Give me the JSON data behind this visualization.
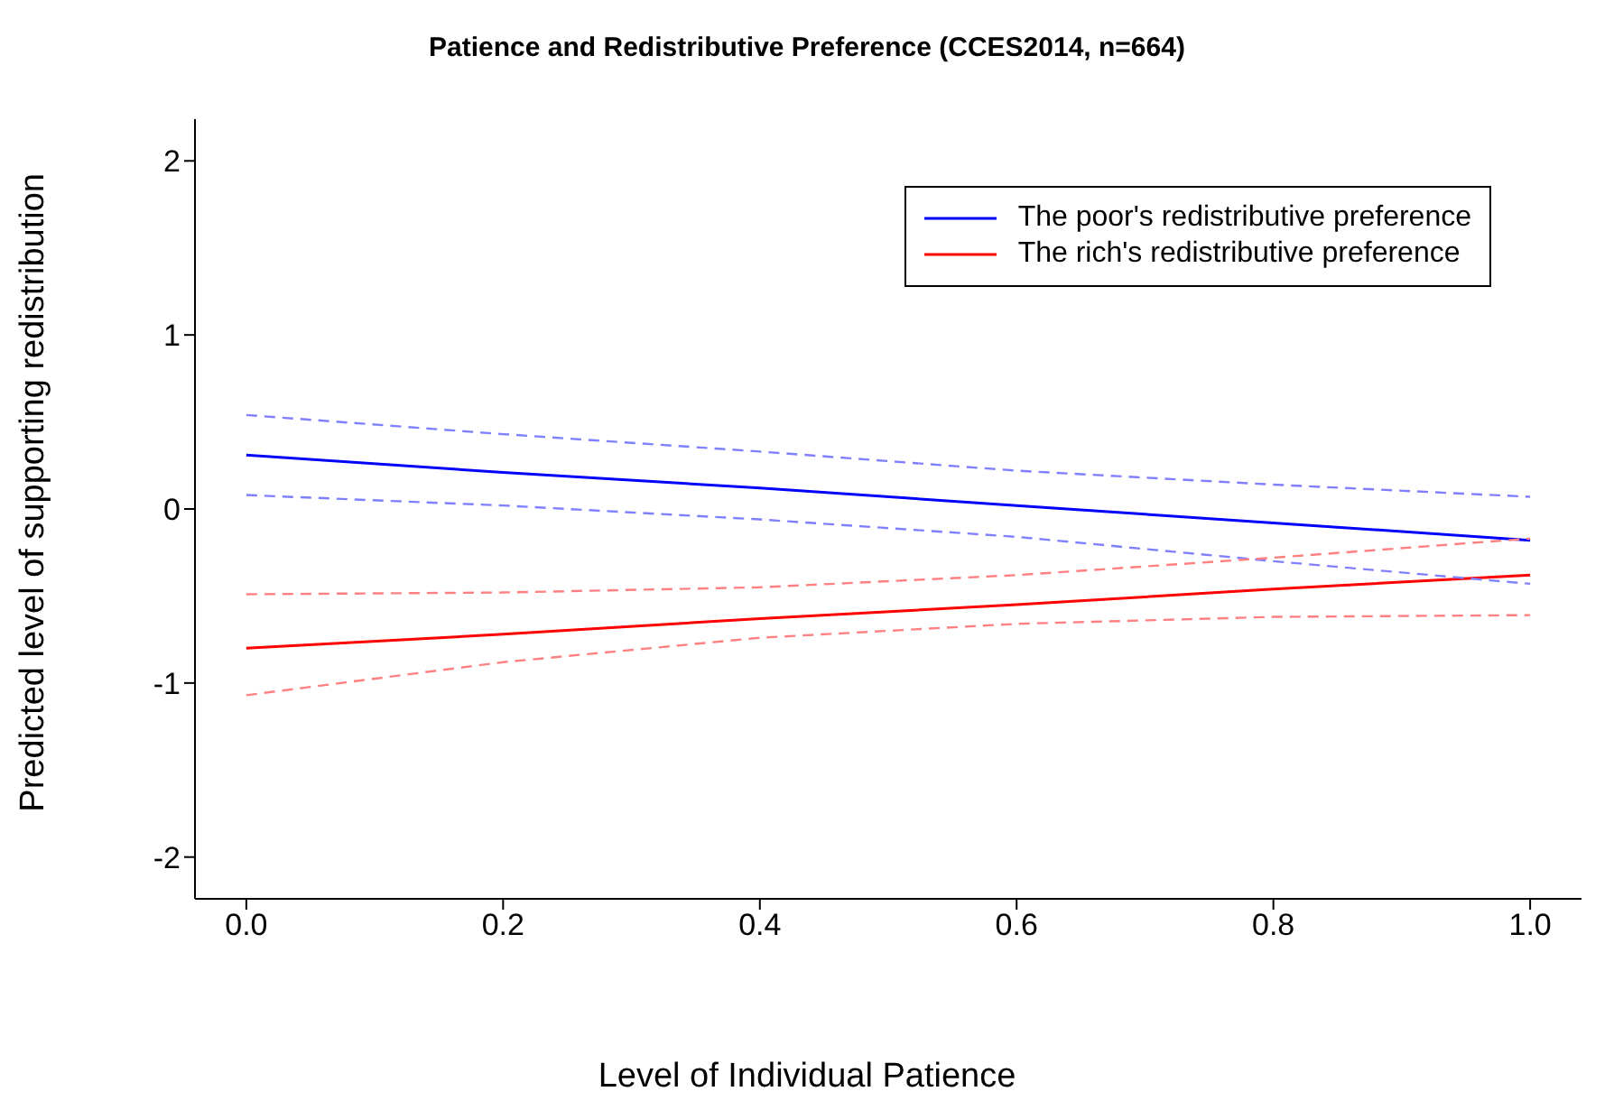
{
  "chart_data": {
    "type": "line",
    "title": "Patience and Redistributive Preference (CCES2014, n=664)",
    "xlabel": "Level of Individual Patience",
    "ylabel": "Predicted level of supporting redistribution",
    "x": [
      0,
      0.2,
      0.4,
      0.6,
      0.8,
      1.0
    ],
    "series": [
      {
        "name": "The poor's redistributive preference",
        "color": "#0000ff",
        "values": [
          0.31,
          0.21,
          0.12,
          0.02,
          -0.08,
          -0.18
        ]
      },
      {
        "name": "The rich's redistributive preference",
        "color": "#ff0000",
        "values": [
          -0.8,
          -0.72,
          -0.63,
          -0.55,
          -0.46,
          -0.38
        ]
      },
      {
        "color": "#8080ff",
        "line_style": "dashed",
        "values": [
          0.08,
          0.02,
          -0.06,
          -0.16,
          -0.3,
          -0.43
        ]
      },
      {
        "color": "#8080ff",
        "line_style": "dashed",
        "values": [
          0.54,
          0.43,
          0.33,
          0.22,
          0.14,
          0.07
        ]
      },
      {
        "color": "#ff8080",
        "line_style": "dashed",
        "values": [
          -1.07,
          -0.88,
          -0.74,
          -0.66,
          -0.62,
          -0.61
        ]
      },
      {
        "color": "#ff8080",
        "line_style": "dashed",
        "values": [
          -0.49,
          -0.48,
          -0.45,
          -0.38,
          -0.28,
          -0.17
        ]
      }
    ],
    "xlim": [
      -0.04,
      1.04
    ],
    "xticks": [
      {
        "value": 0,
        "label": "0.0"
      },
      0.2,
      0.4,
      0.6,
      0.8,
      {
        "value": 1,
        "label": "1.0"
      }
    ],
    "ylim": [
      -2.24,
      2.24
    ],
    "yticks": [
      -2,
      -1,
      0,
      1,
      2
    ],
    "grid": false,
    "legend": "top right",
    "marker": "none",
    "line_style": "solid"
  }
}
